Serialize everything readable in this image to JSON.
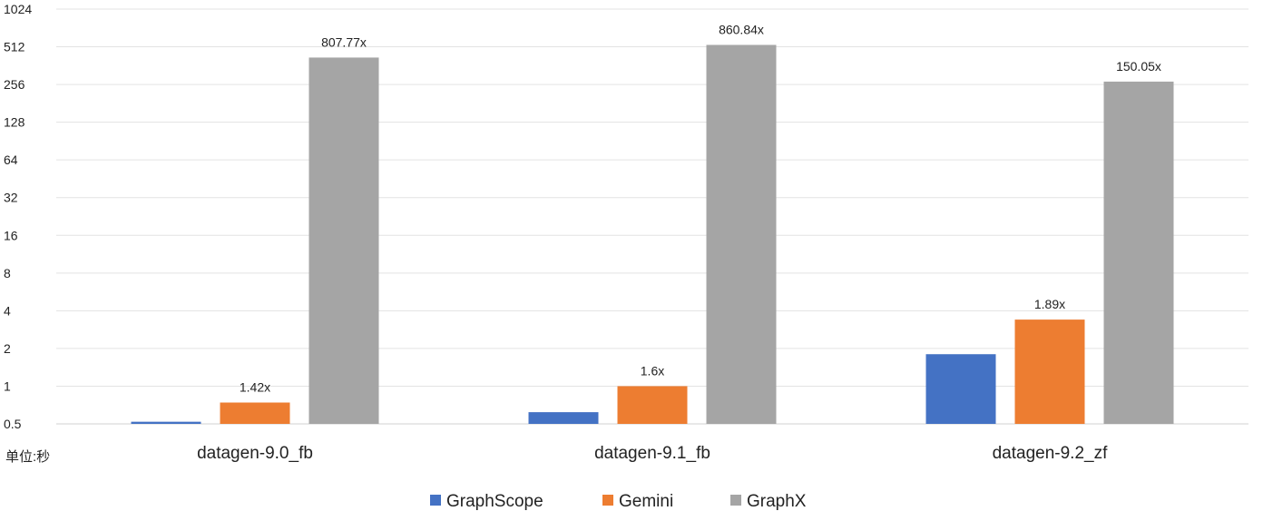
{
  "chart_data": {
    "type": "bar",
    "y_scale": "log2",
    "ylim": [
      0.5,
      1024
    ],
    "y_ticks": [
      "0.5",
      "1",
      "2",
      "4",
      "8",
      "16",
      "32",
      "64",
      "128",
      "256",
      "512",
      "1024"
    ],
    "categories": [
      "datagen-9.0_fb",
      "datagen-9.1_fb",
      "datagen-9.2_zf"
    ],
    "series": [
      {
        "name": "GraphScope",
        "color": "#4472C4",
        "values": [
          0.52,
          0.62,
          1.8
        ],
        "labels": [
          "",
          "",
          ""
        ]
      },
      {
        "name": "Gemini",
        "color": "#ED7D31",
        "values": [
          0.74,
          1.0,
          3.4
        ],
        "labels": [
          "1.42x",
          "1.6x",
          "1.89x"
        ]
      },
      {
        "name": "GraphX",
        "color": "#A5A5A5",
        "values": [
          420,
          530,
          270
        ],
        "labels": [
          "807.77x",
          "860.84x",
          "150.05x"
        ]
      }
    ],
    "unit_label": "单位:秒",
    "legend": "bottom",
    "grid": true
  }
}
